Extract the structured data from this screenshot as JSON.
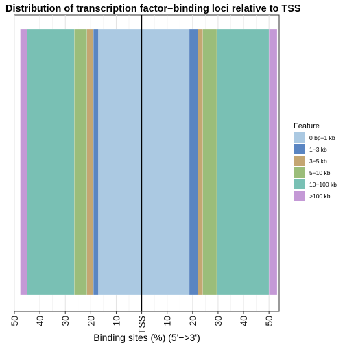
{
  "chart_data": {
    "type": "bar",
    "orientation": "horizontal-stacked-diverging",
    "title": "Distribution of transcription factor−binding loci relative to TSS",
    "xlabel": "Binding sites (%) (5'−>3')",
    "ylabel": "",
    "xlim": [
      -50,
      54
    ],
    "x_ticks": [
      -50,
      -40,
      -30,
      -20,
      -10,
      0,
      10,
      20,
      30,
      40,
      50
    ],
    "x_tick_labels": [
      "50",
      "40",
      "30",
      "20",
      "10",
      "TSS",
      "10",
      "20",
      "30",
      "40",
      "50"
    ],
    "vline_at": 0,
    "grid": true,
    "legend_position": "right",
    "legend_title": "Feature",
    "series": [
      {
        "name": "0 bp−1 kb",
        "color": "#abc9e2",
        "upstream": 17.0,
        "downstream": 18.7
      },
      {
        "name": "1−3 kb",
        "color": "#5a85c2",
        "upstream": 2.0,
        "downstream": 3.3
      },
      {
        "name": "3−5 kb",
        "color": "#c4a672",
        "upstream": 2.5,
        "downstream": 2.0
      },
      {
        "name": "5−10 kb",
        "color": "#9bbd7a",
        "upstream": 5.0,
        "downstream": 5.5
      },
      {
        "name": "10−100 kb",
        "color": "#79c0b4",
        "upstream": 18.5,
        "downstream": 20.5
      },
      {
        "name": ">100 kb",
        "color": "#c499d6",
        "upstream": 2.7,
        "downstream": 3.2
      }
    ]
  }
}
